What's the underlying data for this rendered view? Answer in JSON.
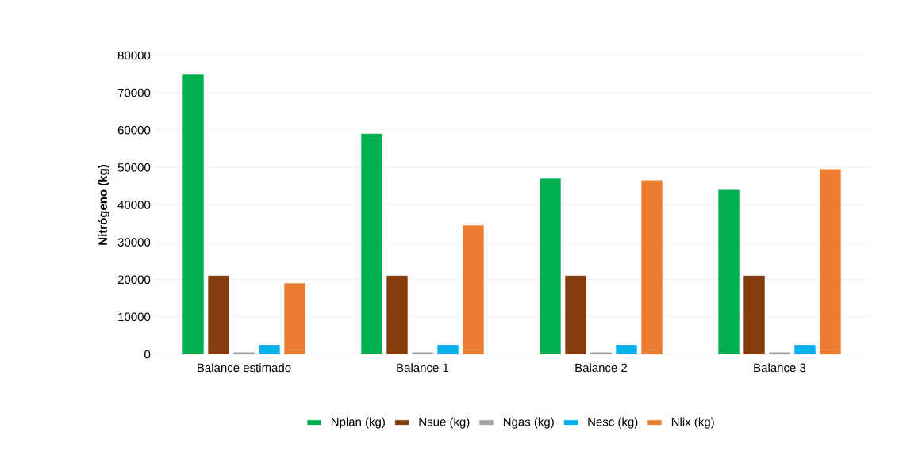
{
  "chart_data": {
    "type": "bar",
    "ylabel": "Nitrógeno  (kg)",
    "categories": [
      "Balance estimado",
      "Balance 1",
      "Balance 2",
      "Balance 3"
    ],
    "series": [
      {
        "name": "Nplan (kg)",
        "color": "#00b050",
        "values": [
          75000,
          59000,
          47000,
          44000
        ]
      },
      {
        "name": "Nsue (kg)",
        "color": "#843c0c",
        "values": [
          21000,
          21000,
          21000,
          21000
        ]
      },
      {
        "name": "Ngas (kg)",
        "color": "#a5a5a5",
        "values": [
          500,
          500,
          500,
          500
        ]
      },
      {
        "name": "Nesc (kg)",
        "color": "#00b0f0",
        "values": [
          2500,
          2500,
          2500,
          2500
        ]
      },
      {
        "name": "Nlix (kg)",
        "color": "#ed7d31",
        "values": [
          19000,
          34500,
          46500,
          49500
        ]
      }
    ],
    "ylim": [
      0,
      80000
    ],
    "yticks": [
      0,
      10000,
      20000,
      30000,
      40000,
      50000,
      60000,
      70000,
      80000
    ],
    "grid": "y",
    "legend": "bottom"
  }
}
